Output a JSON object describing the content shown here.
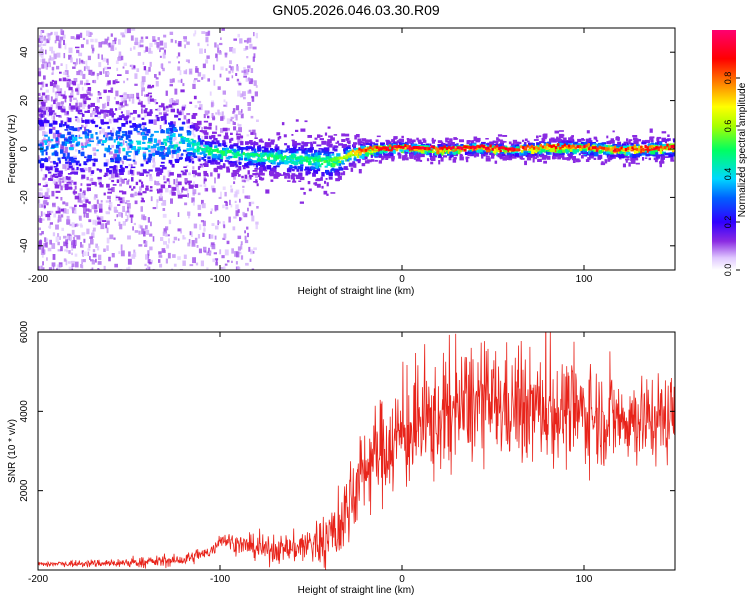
{
  "title": "GN05.2026.046.03.30.R09",
  "chart_data": [
    {
      "type": "heatmap",
      "title": "GN05.2026.046.03.30.R09",
      "xlabel": "Height of straight line (km)",
      "ylabel": "Frequency (Hz)",
      "xlim": [
        -200,
        150
      ],
      "ylim": [
        -50,
        50
      ],
      "xticks": [
        -200,
        -100,
        0,
        100
      ],
      "yticks": [
        -40,
        -20,
        0,
        20,
        40
      ],
      "colorbar": {
        "label": "Normalized spectral amplitude",
        "range": [
          0,
          1
        ],
        "ticks": [
          "0.0",
          "0.2",
          "0.4",
          "0.6",
          "0.8"
        ],
        "colors": [
          "#ffffff",
          "#e0c8ff",
          "#8a2be2",
          "#3000ff",
          "#0060ff",
          "#00d8ff",
          "#00ff60",
          "#a8ff00",
          "#ffff00",
          "#ff8000",
          "#ff0000",
          "#ff0070"
        ]
      },
      "ridge": {
        "x": [
          -200,
          -150,
          -120,
          -110,
          -90,
          -70,
          -50,
          -40,
          -35,
          -30,
          -20,
          0,
          20,
          40,
          60,
          80,
          100,
          120,
          150
        ],
        "freq": [
          3,
          2,
          4,
          0,
          -2,
          -3,
          -4,
          -5,
          -4,
          -2,
          0,
          1,
          0,
          1,
          0,
          1,
          1,
          0,
          1
        ],
        "amplitude": [
          0.35,
          0.4,
          0.45,
          0.5,
          0.5,
          0.5,
          0.5,
          0.55,
          0.6,
          0.7,
          0.9,
          0.95,
          0.9,
          0.95,
          0.9,
          0.85,
          0.9,
          0.85,
          0.9
        ],
        "halfwidth_hz": [
          14,
          13,
          11,
          5,
          4.5,
          5,
          6,
          6,
          5,
          3.5,
          2.5,
          2,
          2,
          2,
          2,
          2.5,
          2.5,
          2.5,
          3
        ]
      },
      "scatter_noise_extent_x": [
        -200,
        -80
      ]
    },
    {
      "type": "line",
      "xlabel": "Height of straight line (km)",
      "ylabel": "SNR (10 * v/v)",
      "xlim": [
        -200,
        150
      ],
      "ylim": [
        0,
        6000
      ],
      "xticks": [
        -200,
        -100,
        0,
        100
      ],
      "yticks": [
        2000,
        4000,
        6000
      ],
      "color": "#e8231a",
      "trend": {
        "x": [
          -200,
          -150,
          -120,
          -105,
          -100,
          -90,
          -75,
          -60,
          -45,
          -35,
          -28,
          -20,
          -10,
          0,
          10,
          25,
          40,
          60,
          80,
          100,
          120,
          150
        ],
        "y": [
          150,
          180,
          250,
          450,
          800,
          650,
          500,
          550,
          700,
          1000,
          1800,
          2600,
          3100,
          3400,
          3600,
          3900,
          4200,
          4150,
          4050,
          3950,
          3800,
          3850
        ]
      },
      "noise_amplitude": {
        "x": [
          -200,
          -110,
          -60,
          -30,
          -10,
          20,
          50,
          150
        ],
        "y": [
          60,
          150,
          350,
          900,
          1200,
          1400,
          1300,
          1000
        ]
      }
    }
  ]
}
